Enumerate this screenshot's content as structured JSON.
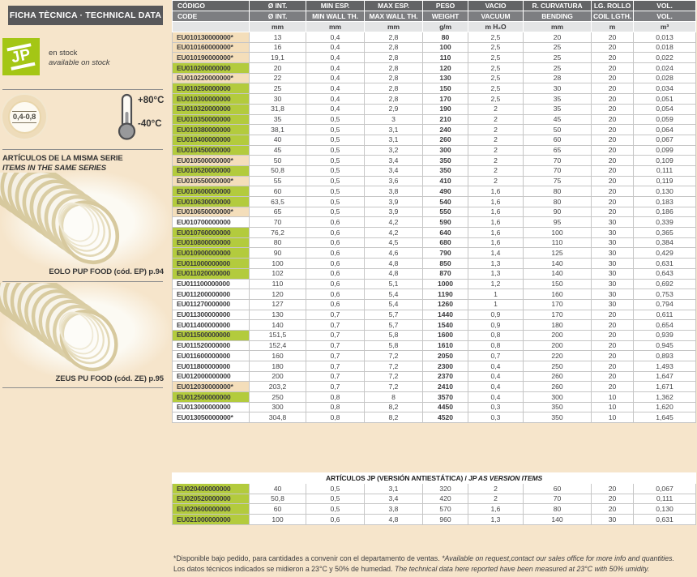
{
  "sidebar": {
    "title": "FICHA TÈCNICA · TECHNICAL DATA",
    "logo_letter_j": "J",
    "logo_letter_p": "P",
    "stock_line1": "en stock",
    "stock_line2": "available on stock",
    "pressure_badge": "0,4-0,8",
    "temp_max": "+80°C",
    "temp_min": "-40°C",
    "series_heading_es": "ARTÍCULOS DE LA MISMA SERIE",
    "series_heading_en": "ITEMS IN THE SAME SERIES",
    "related_items": [
      {
        "caption": "EOLO PUP FOOD (cód. EP) p.94"
      },
      {
        "caption": "ZEUS PU FOOD (cód. ZE) p.95"
      }
    ]
  },
  "colors": {
    "page_background": "#f6e5cb",
    "logo_green": "#a4c615",
    "row_green": "#b3cb3d",
    "row_beige": "#f4deba",
    "header_dark": "#636466",
    "header_mid": "#7d7e81",
    "header_light": "#e4e5e6",
    "sidebar_bar": "#58585a"
  },
  "main_table": {
    "header_row1": [
      "CÓDIGO",
      "Ø INT.",
      "MIN ESP.",
      "MAX ESP.",
      "PESO",
      "VACIO",
      "R. CURVATURA",
      "LG. ROLLO",
      "VOL."
    ],
    "header_row2": [
      "CODE",
      "Ø INT.",
      "MIN WALL TH.",
      "MAX WALL TH.",
      "WEIGHT",
      "VACUUM",
      "BENDING",
      "COIL LGTH.",
      "VOL."
    ],
    "header_row3": [
      "",
      "mm",
      "mm",
      "mm",
      "g/m",
      "m H₂O",
      "mm",
      "m",
      "m³"
    ],
    "rows": [
      {
        "code": "EU010130000000*",
        "hl": "beige",
        "values": [
          "13",
          "0,4",
          "2,8",
          "80",
          "2,5",
          "20",
          "20",
          "0,013"
        ]
      },
      {
        "code": "EU010160000000*",
        "hl": "beige",
        "values": [
          "16",
          "0,4",
          "2,8",
          "100",
          "2,5",
          "25",
          "20",
          "0,018"
        ]
      },
      {
        "code": "EU010190000000*",
        "hl": "beige",
        "values": [
          "19,1",
          "0,4",
          "2,8",
          "110",
          "2,5",
          "25",
          "20",
          "0,022"
        ]
      },
      {
        "code": "EU010200000000",
        "hl": "green",
        "values": [
          "20",
          "0,4",
          "2,8",
          "120",
          "2,5",
          "25",
          "20",
          "0,024"
        ]
      },
      {
        "code": "EU010220000000*",
        "hl": "beige",
        "values": [
          "22",
          "0,4",
          "2,8",
          "130",
          "2,5",
          "28",
          "20",
          "0,028"
        ]
      },
      {
        "code": "EU010250000000",
        "hl": "green",
        "values": [
          "25",
          "0,4",
          "2,8",
          "150",
          "2,5",
          "30",
          "20",
          "0,034"
        ]
      },
      {
        "code": "EU010300000000",
        "hl": "green",
        "values": [
          "30",
          "0,4",
          "2,8",
          "170",
          "2,5",
          "35",
          "20",
          "0,051"
        ]
      },
      {
        "code": "EU010320000000",
        "hl": "green",
        "values": [
          "31,8",
          "0,4",
          "2,9",
          "190",
          "2",
          "35",
          "20",
          "0,054"
        ]
      },
      {
        "code": "EU010350000000",
        "hl": "green",
        "values": [
          "35",
          "0,5",
          "3",
          "210",
          "2",
          "45",
          "20",
          "0,059"
        ]
      },
      {
        "code": "EU010380000000",
        "hl": "green",
        "values": [
          "38,1",
          "0,5",
          "3,1",
          "240",
          "2",
          "50",
          "20",
          "0,064"
        ]
      },
      {
        "code": "EU010400000000",
        "hl": "green",
        "values": [
          "40",
          "0,5",
          "3,1",
          "260",
          "2",
          "60",
          "20",
          "0,067"
        ]
      },
      {
        "code": "EU010450000000",
        "hl": "green",
        "values": [
          "45",
          "0,5",
          "3,2",
          "300",
          "2",
          "65",
          "20",
          "0,099"
        ]
      },
      {
        "code": "EU010500000000*",
        "hl": "beige",
        "values": [
          "50",
          "0,5",
          "3,4",
          "350",
          "2",
          "70",
          "20",
          "0,109"
        ]
      },
      {
        "code": "EU010520000000",
        "hl": "green",
        "values": [
          "50,8",
          "0,5",
          "3,4",
          "350",
          "2",
          "70",
          "20",
          "0,111"
        ]
      },
      {
        "code": "EU010550000000*",
        "hl": "beige",
        "values": [
          "55",
          "0,5",
          "3,6",
          "410",
          "2",
          "75",
          "20",
          "0,119"
        ]
      },
      {
        "code": "EU010600000000",
        "hl": "green",
        "values": [
          "60",
          "0,5",
          "3,8",
          "490",
          "1,6",
          "80",
          "20",
          "0,130"
        ]
      },
      {
        "code": "EU010630000000",
        "hl": "green",
        "values": [
          "63,5",
          "0,5",
          "3,9",
          "540",
          "1,6",
          "80",
          "20",
          "0,183"
        ]
      },
      {
        "code": "EU010650000000*",
        "hl": "beige",
        "values": [
          "65",
          "0,5",
          "3,9",
          "550",
          "1,6",
          "90",
          "20",
          "0,186"
        ]
      },
      {
        "code": "EU010700000000",
        "hl": "none",
        "values": [
          "70",
          "0,6",
          "4,2",
          "590",
          "1,6",
          "95",
          "30",
          "0,339"
        ]
      },
      {
        "code": "EU010760000000",
        "hl": "green",
        "values": [
          "76,2",
          "0,6",
          "4,2",
          "640",
          "1,6",
          "100",
          "30",
          "0,365"
        ]
      },
      {
        "code": "EU010800000000",
        "hl": "green",
        "values": [
          "80",
          "0,6",
          "4,5",
          "680",
          "1,6",
          "110",
          "30",
          "0,384"
        ]
      },
      {
        "code": "EU010900000000",
        "hl": "green",
        "values": [
          "90",
          "0,6",
          "4,6",
          "790",
          "1,4",
          "125",
          "30",
          "0,429"
        ]
      },
      {
        "code": "EU011000000000",
        "hl": "green",
        "values": [
          "100",
          "0,6",
          "4,8",
          "850",
          "1,3",
          "140",
          "30",
          "0,631"
        ]
      },
      {
        "code": "EU011020000000",
        "hl": "green",
        "values": [
          "102",
          "0,6",
          "4,8",
          "870",
          "1,3",
          "140",
          "30",
          "0,643"
        ]
      },
      {
        "code": "EU011100000000",
        "hl": "none",
        "values": [
          "110",
          "0,6",
          "5,1",
          "1000",
          "1,2",
          "150",
          "30",
          "0,692"
        ]
      },
      {
        "code": "EU011200000000",
        "hl": "none",
        "values": [
          "120",
          "0,6",
          "5,4",
          "1190",
          "1",
          "160",
          "30",
          "0,753"
        ]
      },
      {
        "code": "EU011270000000",
        "hl": "none",
        "values": [
          "127",
          "0,6",
          "5,4",
          "1260",
          "1",
          "170",
          "30",
          "0,794"
        ]
      },
      {
        "code": "EU011300000000",
        "hl": "none",
        "values": [
          "130",
          "0,7",
          "5,7",
          "1440",
          "0,9",
          "170",
          "20",
          "0,611"
        ]
      },
      {
        "code": "EU011400000000",
        "hl": "none",
        "values": [
          "140",
          "0,7",
          "5,7",
          "1540",
          "0,9",
          "180",
          "20",
          "0,654"
        ]
      },
      {
        "code": "EU011500000000",
        "hl": "green",
        "values": [
          "151,5",
          "0,7",
          "5,8",
          "1600",
          "0,8",
          "200",
          "20",
          "0,939"
        ]
      },
      {
        "code": "EU011520000000",
        "hl": "none",
        "values": [
          "152,4",
          "0,7",
          "5,8",
          "1610",
          "0,8",
          "200",
          "20",
          "0,945"
        ]
      },
      {
        "code": "EU011600000000",
        "hl": "none",
        "values": [
          "160",
          "0,7",
          "7,2",
          "2050",
          "0,7",
          "220",
          "20",
          "0,893"
        ]
      },
      {
        "code": "EU011800000000",
        "hl": "none",
        "values": [
          "180",
          "0,7",
          "7,2",
          "2300",
          "0,4",
          "250",
          "20",
          "1,493"
        ]
      },
      {
        "code": "EU012000000000",
        "hl": "none",
        "values": [
          "200",
          "0,7",
          "7,2",
          "2370",
          "0,4",
          "260",
          "20",
          "1,647"
        ]
      },
      {
        "code": "EU012030000000*",
        "hl": "beige",
        "values": [
          "203,2",
          "0,7",
          "7,2",
          "2410",
          "0,4",
          "260",
          "20",
          "1,671"
        ]
      },
      {
        "code": "EU012500000000",
        "hl": "green",
        "values": [
          "250",
          "0,8",
          "8",
          "3570",
          "0,4",
          "300",
          "10",
          "1,362"
        ]
      },
      {
        "code": "EU013000000000",
        "hl": "none",
        "values": [
          "300",
          "0,8",
          "8,2",
          "4450",
          "0,3",
          "350",
          "10",
          "1,620"
        ]
      },
      {
        "code": "EU013050000000*",
        "hl": "none",
        "values": [
          "304,8",
          "0,8",
          "8,2",
          "4520",
          "0,3",
          "350",
          "10",
          "1,645"
        ]
      }
    ]
  },
  "as_table": {
    "title_es": "ARTÍCULOS JP (VERSIÓN ANTIESTÁTICA) / ",
    "title_en": "JP AS VERSION ITEMS",
    "rows": [
      {
        "code": "EU020400000000",
        "hl": "green",
        "values": [
          "40",
          "0,5",
          "3,1",
          "320",
          "2",
          "60",
          "20",
          "0,067"
        ]
      },
      {
        "code": "EU020520000000",
        "hl": "green",
        "values": [
          "50,8",
          "0,5",
          "3,4",
          "420",
          "2",
          "70",
          "20",
          "0,111"
        ]
      },
      {
        "code": "EU020600000000",
        "hl": "green",
        "values": [
          "60",
          "0,5",
          "3,8",
          "570",
          "1,6",
          "80",
          "20",
          "0,130"
        ]
      },
      {
        "code": "EU021000000000",
        "hl": "green",
        "values": [
          "100",
          "0,6",
          "4,8",
          "960",
          "1,3",
          "140",
          "30",
          "0,631"
        ]
      }
    ]
  },
  "footnotes": {
    "line1_es": "*Disponible bajo pedido, para cantidades a convenir con el departamento de ventas.",
    "line1_en": "*Available on request,contact our sales office for more info and quantities.",
    "line2_es": "Los datos técnicos indicados se midieron a 23°C y 50% de humedad.",
    "line2_en": "The technical data here reported have been measured at 23°C with 50% umidity."
  }
}
